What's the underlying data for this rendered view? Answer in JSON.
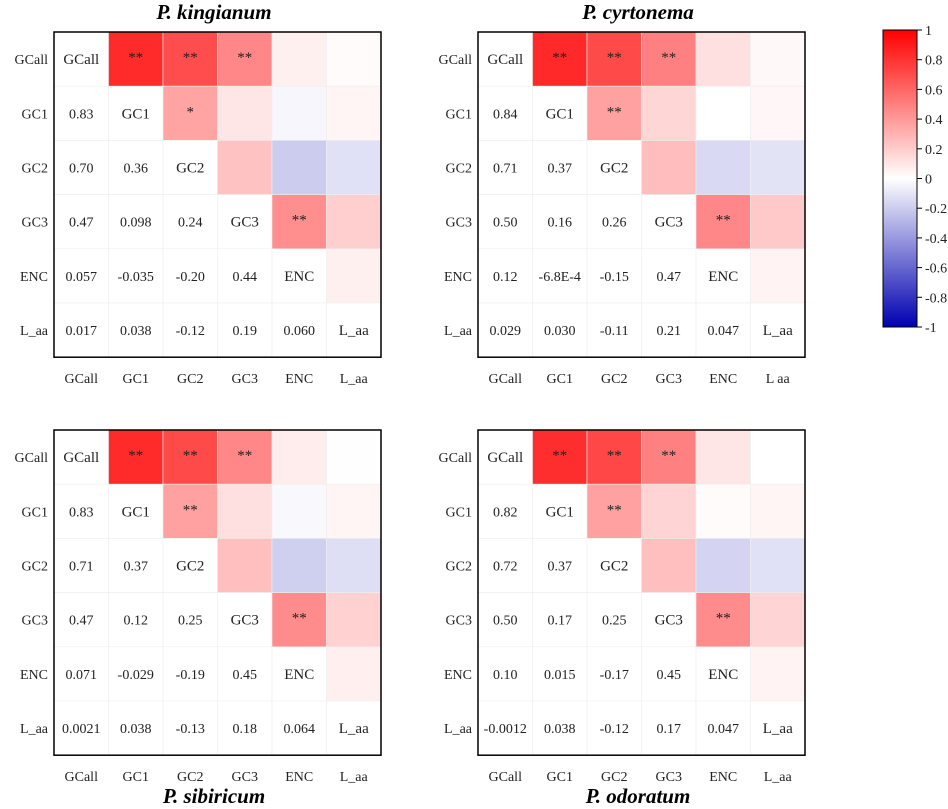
{
  "chart_data": [
    {
      "type": "heatmap",
      "title": "P. kingianum",
      "variables": [
        "GCall",
        "GC1",
        "GC2",
        "GC3",
        "ENC",
        "L_aa"
      ],
      "x_tick_labels": [
        "GCall",
        "GC1",
        "GC2",
        "GC3",
        "ENC",
        "L_aa"
      ],
      "y_tick_labels": [
        "GCall",
        "GC1",
        "GC2",
        "GC3",
        "ENC",
        "L_aa"
      ],
      "lower_triangle_labels": [
        [
          "0.83"
        ],
        [
          "0.70",
          "0.36"
        ],
        [
          "0.47",
          "0.098",
          "0.24"
        ],
        [
          "0.057",
          "-0.035",
          "-0.20",
          "0.44"
        ],
        [
          "0.017",
          "0.038",
          "-0.12",
          "0.19",
          "0.060"
        ]
      ],
      "correlations": [
        [
          1,
          0.83,
          0.7,
          0.47,
          0.057,
          0.017
        ],
        [
          0.83,
          1,
          0.36,
          0.098,
          -0.035,
          0.038
        ],
        [
          0.7,
          0.36,
          1,
          0.24,
          -0.2,
          -0.12
        ],
        [
          0.47,
          0.098,
          0.24,
          1,
          0.44,
          0.19
        ],
        [
          0.057,
          -0.035,
          -0.2,
          0.44,
          1,
          0.06
        ],
        [
          0.017,
          0.038,
          -0.12,
          0.19,
          0.06,
          1
        ]
      ],
      "significance": [
        [
          "",
          "**",
          "**",
          "**",
          "",
          ""
        ],
        [
          "",
          "",
          "*",
          "",
          "",
          ""
        ],
        [
          "",
          "",
          "",
          "",
          "",
          ""
        ],
        [
          "",
          "",
          "",
          "",
          "**",
          ""
        ],
        [
          "",
          "",
          "",
          "",
          "",
          ""
        ],
        [
          "",
          "",
          "",
          "",
          "",
          ""
        ]
      ]
    },
    {
      "type": "heatmap",
      "title": "P. cyrtonema",
      "variables": [
        "GCall",
        "GC1",
        "GC2",
        "GC3",
        "ENC",
        "L_aa"
      ],
      "x_tick_labels": [
        "GCall",
        "GC1",
        "GC2",
        "GC3",
        "ENC",
        "L  aa"
      ],
      "y_tick_labels": [
        "GCall",
        "GC1",
        "GC2",
        "GC3",
        "ENC",
        "L_aa"
      ],
      "lower_triangle_labels": [
        [
          "0.84"
        ],
        [
          "0.71",
          "0.37"
        ],
        [
          "0.50",
          "0.16",
          "0.26"
        ],
        [
          "0.12",
          "-6.8E-4",
          "-0.15",
          "0.47"
        ],
        [
          "0.029",
          "0.030",
          "-0.11",
          "0.21",
          "0.047"
        ]
      ],
      "correlations": [
        [
          1,
          0.84,
          0.71,
          0.5,
          0.12,
          0.029
        ],
        [
          0.84,
          1,
          0.37,
          0.16,
          -0.00068,
          0.03
        ],
        [
          0.71,
          0.37,
          1,
          0.26,
          -0.15,
          -0.11
        ],
        [
          0.5,
          0.16,
          0.26,
          1,
          0.47,
          0.21
        ],
        [
          0.12,
          -0.00068,
          -0.15,
          0.47,
          1,
          0.047
        ],
        [
          0.029,
          0.03,
          -0.11,
          0.21,
          0.047,
          1
        ]
      ],
      "significance": [
        [
          "",
          "**",
          "**",
          "**",
          "",
          ""
        ],
        [
          "",
          "",
          "**",
          "",
          "",
          ""
        ],
        [
          "",
          "",
          "",
          "",
          "",
          ""
        ],
        [
          "",
          "",
          "",
          "",
          "**",
          ""
        ],
        [
          "",
          "",
          "",
          "",
          "",
          ""
        ],
        [
          "",
          "",
          "",
          "",
          "",
          ""
        ]
      ]
    },
    {
      "type": "heatmap",
      "title": "P. sibiricum",
      "variables": [
        "GCall",
        "GC1",
        "GC2",
        "GC3",
        "ENC",
        "L_aa"
      ],
      "x_tick_labels": [
        "GCall",
        "GC1",
        "GC2",
        "GC3",
        "ENC",
        "L_aa"
      ],
      "y_tick_labels": [
        "GCall",
        "GC1",
        "GC2",
        "GC3",
        "ENC",
        "L_aa"
      ],
      "lower_triangle_labels": [
        [
          "0.83"
        ],
        [
          "0.71",
          "0.37"
        ],
        [
          "0.47",
          "0.12",
          "0.25"
        ],
        [
          "0.071",
          "-0.029",
          "-0.19",
          "0.45"
        ],
        [
          "0.0021",
          "0.038",
          "-0.13",
          "0.18",
          "0.064"
        ]
      ],
      "correlations": [
        [
          1,
          0.83,
          0.71,
          0.47,
          0.071,
          0.0021
        ],
        [
          0.83,
          1,
          0.37,
          0.12,
          -0.029,
          0.038
        ],
        [
          0.71,
          0.37,
          1,
          0.25,
          -0.19,
          -0.13
        ],
        [
          0.47,
          0.12,
          0.25,
          1,
          0.45,
          0.18
        ],
        [
          0.071,
          -0.029,
          -0.19,
          0.45,
          1,
          0.064
        ],
        [
          0.0021,
          0.038,
          -0.13,
          0.18,
          0.064,
          1
        ]
      ],
      "significance": [
        [
          "",
          "**",
          "**",
          "**",
          "",
          ""
        ],
        [
          "",
          "",
          "**",
          "",
          "",
          ""
        ],
        [
          "",
          "",
          "",
          "",
          "",
          ""
        ],
        [
          "",
          "",
          "",
          "",
          "**",
          ""
        ],
        [
          "",
          "",
          "",
          "",
          "",
          ""
        ],
        [
          "",
          "",
          "",
          "",
          "",
          ""
        ]
      ]
    },
    {
      "type": "heatmap",
      "title": "P. odoratum",
      "variables": [
        "GCall",
        "GC1",
        "GC2",
        "GC3",
        "ENC",
        "L_aa"
      ],
      "x_tick_labels": [
        "GCall",
        "GC1",
        "GC2",
        "GC3",
        "ENC",
        "L_aa"
      ],
      "y_tick_labels": [
        "GCall",
        "GC1",
        "GC2",
        "GC3",
        "ENC",
        "L_aa"
      ],
      "lower_triangle_labels": [
        [
          "0.82"
        ],
        [
          "0.72",
          "0.37"
        ],
        [
          "0.50",
          "0.17",
          "0.25"
        ],
        [
          "0.10",
          "0.015",
          "-0.17",
          "0.45"
        ],
        [
          "-0.0012",
          "0.038",
          "-0.12",
          "0.17",
          "0.047"
        ]
      ],
      "correlations": [
        [
          1,
          0.82,
          0.72,
          0.5,
          0.1,
          -0.0012
        ],
        [
          0.82,
          1,
          0.37,
          0.17,
          0.015,
          0.038
        ],
        [
          0.72,
          0.37,
          1,
          0.25,
          -0.17,
          -0.12
        ],
        [
          0.5,
          0.17,
          0.25,
          1,
          0.45,
          0.17
        ],
        [
          0.1,
          0.015,
          -0.17,
          0.45,
          1,
          0.047
        ],
        [
          -0.0012,
          0.038,
          -0.12,
          0.17,
          0.047,
          1
        ]
      ],
      "significance": [
        [
          "",
          "**",
          "**",
          "**",
          "",
          ""
        ],
        [
          "",
          "",
          "**",
          "",
          "",
          ""
        ],
        [
          "",
          "",
          "",
          "",
          "",
          ""
        ],
        [
          "",
          "",
          "",
          "",
          "**",
          ""
        ],
        [
          "",
          "",
          "",
          "",
          "",
          ""
        ],
        [
          "",
          "",
          "",
          "",
          "",
          ""
        ]
      ]
    }
  ],
  "colorbar": {
    "range": [
      -1,
      1
    ],
    "tick_labels": [
      "1",
      "0.8",
      "0.6",
      "0.4",
      "0.2",
      "0",
      "-0.2",
      "-0.4",
      "-0.6",
      "-0.8",
      "-1"
    ],
    "colors": {
      "positive": "#ff0000",
      "zero": "#ffffff",
      "negative": "#0000b0"
    }
  }
}
